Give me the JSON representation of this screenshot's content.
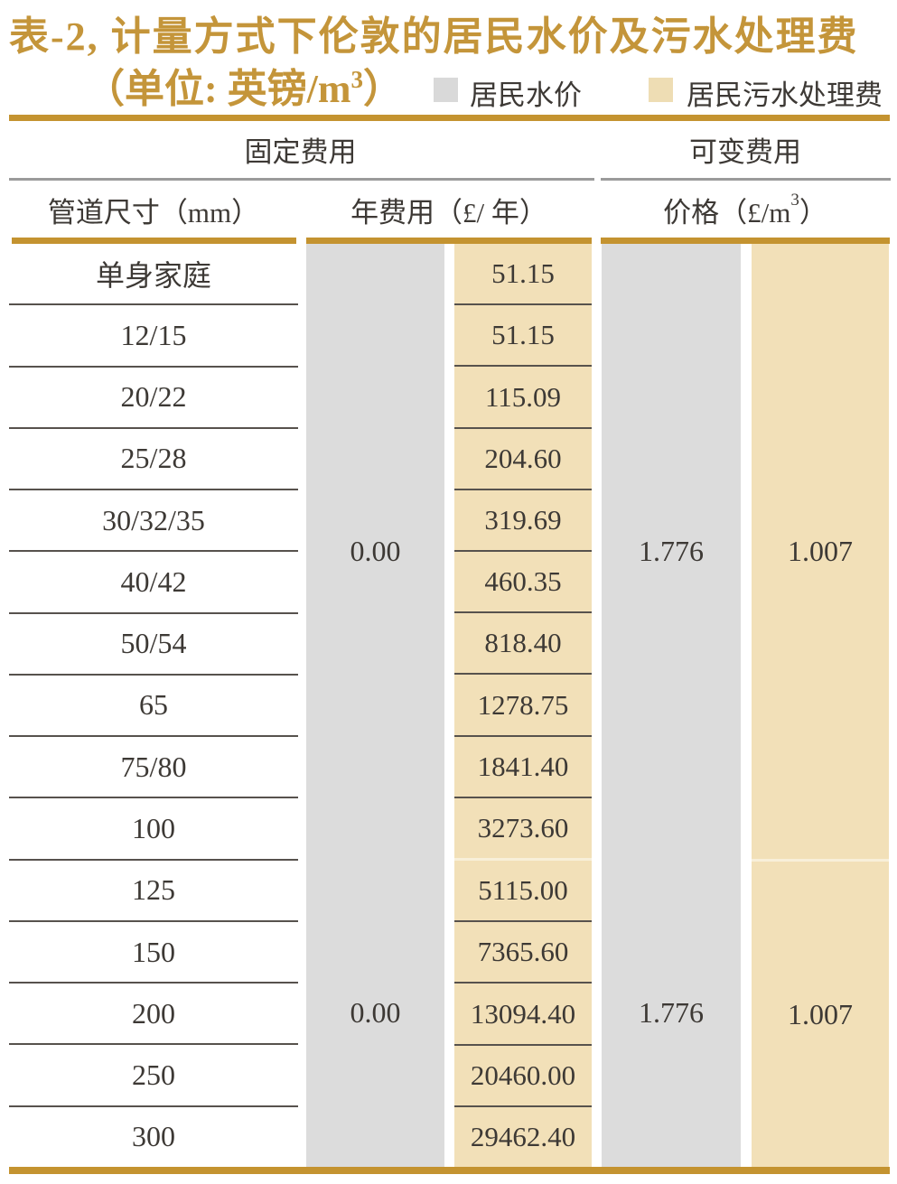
{
  "title": {
    "line1": "表-2, 计量方式下伦敦的居民水价及污水处理费",
    "unit_prefix": "（单位: 英镑/m",
    "unit_sup": "3",
    "unit_close": "）"
  },
  "legend": {
    "water": {
      "label": "居民水价",
      "color": "#d9d9d9"
    },
    "sewage": {
      "label": "居民污水处理费",
      "color": "#eeddb4"
    }
  },
  "headers": {
    "fixed": "固定费用",
    "variable": "可变费用",
    "pipe_size": "管道尺寸（mm）",
    "annual_fee": "年费用（£/ 年）",
    "price_prefix": "价格（£/m",
    "price_sup": "3",
    "price_close": "）"
  },
  "colors": {
    "gold_accent": "#c49330",
    "water_band": "#dcdcdc",
    "sewage_band": "#f2e0b8",
    "text_dark": "#3d3935"
  },
  "chart_data": {
    "type": "table",
    "title": "表-2, 计量方式下伦敦的居民水价及污水处理费（单位: 英镑/m3）",
    "columns": [
      "管道尺寸（mm）",
      "居民水价 年费用（£/年）",
      "居民污水处理费 年费用（£/年）",
      "居民水价 价格（£/m3）",
      "居民污水处理费 价格（£/m3）"
    ],
    "rows": [
      {
        "size": "单身家庭",
        "sewage_annual": "51.15"
      },
      {
        "size": "12/15",
        "sewage_annual": "51.15"
      },
      {
        "size": "20/22",
        "sewage_annual": "115.09"
      },
      {
        "size": "25/28",
        "sewage_annual": "204.60"
      },
      {
        "size": "30/32/35",
        "sewage_annual": "319.69"
      },
      {
        "size": "40/42",
        "sewage_annual": "460.35"
      },
      {
        "size": "50/54",
        "sewage_annual": "818.40"
      },
      {
        "size": "65",
        "sewage_annual": "1278.75"
      },
      {
        "size": "75/80",
        "sewage_annual": "1841.40"
      },
      {
        "size": "100",
        "sewage_annual": "3273.60"
      },
      {
        "size": "125",
        "sewage_annual": "5115.00"
      },
      {
        "size": "150",
        "sewage_annual": "7365.60"
      },
      {
        "size": "200",
        "sewage_annual": "13094.40"
      },
      {
        "size": "250",
        "sewage_annual": "20460.00"
      },
      {
        "size": "300",
        "sewage_annual": "29462.40"
      }
    ],
    "groups": [
      {
        "row_span": [
          0,
          9
        ],
        "water_annual": "0.00",
        "water_price": "1.776",
        "sewage_price": "1.007"
      },
      {
        "row_span": [
          10,
          14
        ],
        "water_annual": "0.00",
        "water_price": "1.776",
        "sewage_price": "1.007"
      }
    ]
  }
}
